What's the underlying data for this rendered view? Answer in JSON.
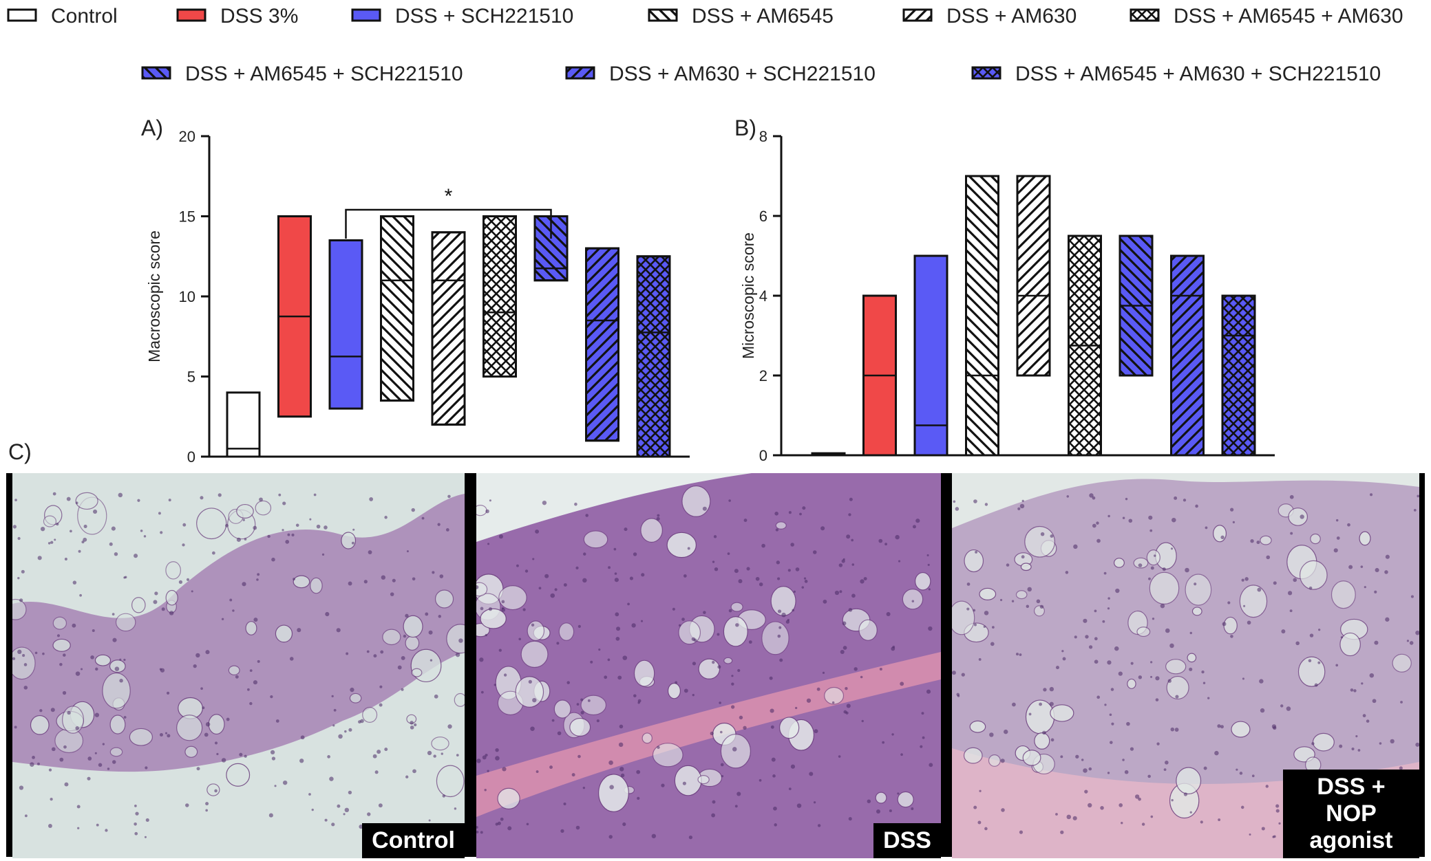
{
  "legend": {
    "items": [
      {
        "label": "Control",
        "color": "#ffffff",
        "pattern": "none"
      },
      {
        "label": "DSS 3%",
        "color": "#f04848",
        "pattern": "none"
      },
      {
        "label": "DSS + SCH221510",
        "color": "#5a5af5",
        "pattern": "none"
      },
      {
        "label": "DSS + AM6545",
        "color": "#ffffff",
        "pattern": "diag-left"
      },
      {
        "label": "DSS + AM630",
        "color": "#ffffff",
        "pattern": "diag-right"
      },
      {
        "label": "DSS + AM6545 + AM630",
        "color": "#ffffff",
        "pattern": "cross"
      },
      {
        "label": "DSS + AM6545 + SCH221510",
        "color": "#5a5af5",
        "pattern": "diag-left"
      },
      {
        "label": "DSS + AM630 + SCH221510",
        "color": "#5a5af5",
        "pattern": "diag-right"
      },
      {
        "label": "DSS + AM6545 + AM630 + SCH221510",
        "color": "#5a5af5",
        "pattern": "cross"
      }
    ]
  },
  "panels": {
    "a_label": "A)",
    "b_label": "B)",
    "c_label": "C)",
    "significance": "*"
  },
  "chart_data": [
    {
      "type": "floating-bar",
      "panel": "A)",
      "ylabel": "Macroscopic score",
      "ylim": [
        0,
        20
      ],
      "yticks": [
        0,
        5,
        10,
        15,
        20
      ],
      "bars": [
        {
          "group": "Control",
          "min": 0,
          "max": 4,
          "median": 0.5
        },
        {
          "group": "DSS 3%",
          "min": 2.5,
          "max": 15,
          "median": 8.75
        },
        {
          "group": "DSS + SCH221510",
          "min": 3,
          "max": 13.5,
          "median": 6.25
        },
        {
          "group": "DSS + AM6545",
          "min": 3.5,
          "max": 15,
          "median": 11
        },
        {
          "group": "DSS + AM630",
          "min": 2,
          "max": 14,
          "median": 11
        },
        {
          "group": "DSS + AM6545 + AM630",
          "min": 5,
          "max": 15,
          "median": 9
        },
        {
          "group": "DSS + AM6545 + SCH221510",
          "min": 11,
          "max": 15,
          "median": 11.75
        },
        {
          "group": "DSS + AM630 + SCH221510",
          "min": 1,
          "max": 13,
          "median": 8.5
        },
        {
          "group": "DSS + AM6545 + AM630 + SCH221510",
          "min": 0,
          "max": 12.5,
          "median": 7.75
        }
      ],
      "annotations": [
        {
          "text": "*",
          "from_group": "DSS + SCH221510",
          "to_group": "DSS + AM6545 + SCH221510"
        }
      ]
    },
    {
      "type": "floating-bar",
      "panel": "B)",
      "ylabel": "Microscopic score",
      "ylim": [
        0,
        8
      ],
      "yticks": [
        0,
        2,
        4,
        6,
        8
      ],
      "bars": [
        {
          "group": "Control",
          "min": 0,
          "max": 0.05,
          "median": 0
        },
        {
          "group": "DSS 3%",
          "min": 0,
          "max": 4,
          "median": 2
        },
        {
          "group": "DSS + SCH221510",
          "min": 0,
          "max": 5,
          "median": 0.75
        },
        {
          "group": "DSS + AM6545",
          "min": 0,
          "max": 7,
          "median": 2
        },
        {
          "group": "DSS + AM630",
          "min": 2,
          "max": 7,
          "median": 4
        },
        {
          "group": "DSS + AM6545 + AM630",
          "min": 0,
          "max": 5.5,
          "median": 2.75
        },
        {
          "group": "DSS + AM6545 + SCH221510",
          "min": 2,
          "max": 5.5,
          "median": 3.75
        },
        {
          "group": "DSS + AM630 + SCH221510",
          "min": 0,
          "max": 5,
          "median": 4
        },
        {
          "group": "DSS + AM6545 + AM630 + SCH221510",
          "min": 0,
          "max": 4,
          "median": 3
        }
      ]
    }
  ],
  "micrographs": [
    {
      "caption": "Control",
      "tissue_color": "#a784b4",
      "bg_color": "#d8e2e0"
    },
    {
      "caption": "DSS",
      "tissue_color": "#8a55a0",
      "bg_color": "#e6eceb"
    },
    {
      "caption": "DSS + NOP agonist",
      "tissue_color": "#b59cc0",
      "bg_color": "#e2e8e6"
    }
  ]
}
